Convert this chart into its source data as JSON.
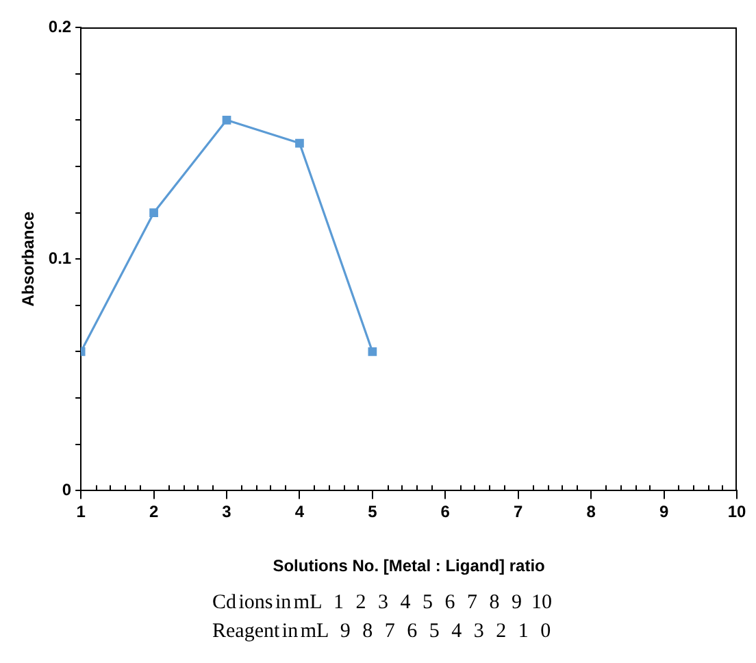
{
  "chart_data": {
    "type": "line",
    "xlabel": "Solutions No. [Metal : Ligand] ratio",
    "ylabel": "Absorbance",
    "x": [
      1,
      2,
      3,
      4,
      5
    ],
    "series": [
      {
        "color": "#5b9bd5",
        "values": [
          0.06,
          0.12,
          0.16,
          0.15,
          0.06
        ]
      }
    ],
    "xlim": [
      1,
      10
    ],
    "xticks": [
      1,
      2,
      3,
      4,
      5,
      6,
      7,
      8,
      9,
      10
    ],
    "ylim": [
      0,
      0.2
    ],
    "yticks": [
      0,
      {
        "value": 0.02,
        "label": null
      },
      {
        "value": 0.04,
        "label": null
      },
      {
        "value": 0.06,
        "label": null
      },
      {
        "value": 0.08,
        "label": null
      },
      0.1,
      {
        "value": 0.12,
        "label": null
      },
      {
        "value": 0.14,
        "label": null
      },
      {
        "value": 0.16,
        "label": null
      },
      {
        "value": 0.18,
        "label": null
      },
      0.2
    ],
    "grid": false,
    "legend": false,
    "marker": "square",
    "line_style": "solid",
    "annotations": [
      "Cd ions in mL     1     2     3     4     5     6     7     8     9    10",
      "Reagent in mL     9     8     7     6     5     4     3     2     1     0"
    ]
  }
}
